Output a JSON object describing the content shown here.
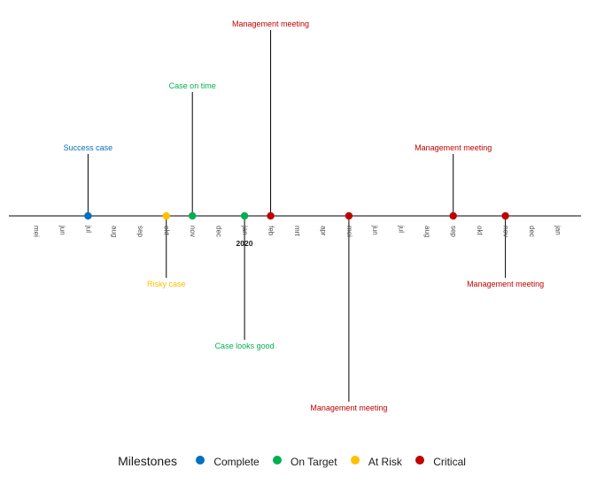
{
  "chart_data": {
    "type": "timeline",
    "year_label": "2020",
    "months": [
      "mei",
      "jun",
      "jul",
      "aug",
      "sep",
      "okt",
      "nov",
      "dec",
      "jan",
      "feb",
      "mrt",
      "apr",
      "mei",
      "jun",
      "jul",
      "aug",
      "sep",
      "okt",
      "nov",
      "dec",
      "jan"
    ],
    "status_colors": {
      "Complete": "#0070C0",
      "On Target": "#00B050",
      "At Risk": "#FFC000",
      "Critical": "#C00000"
    },
    "milestones": [
      {
        "month_index": 2.0,
        "label": "Success case",
        "status": "Complete",
        "height": 1.0
      },
      {
        "month_index": 5.0,
        "label": "Risky case",
        "status": "At Risk",
        "height": -1.0
      },
      {
        "month_index": 6.0,
        "label": "Case on time",
        "status": "On Target",
        "height": 2.0
      },
      {
        "month_index": 8.0,
        "label": "Case looks good",
        "status": "On Target",
        "height": -2.0
      },
      {
        "month_index": 9.0,
        "label": "Management meeting",
        "status": "Critical",
        "height": 3.0
      },
      {
        "month_index": 12.0,
        "label": "Management meeting",
        "status": "Critical",
        "height": -3.0
      },
      {
        "month_index": 16.0,
        "label": "Management meeting",
        "status": "Critical",
        "height": 1.0
      },
      {
        "month_index": 18.0,
        "label": "Management meeting",
        "status": "Critical",
        "height": -1.0
      }
    ],
    "legend": {
      "title": "Milestones",
      "items": [
        "Complete",
        "On Target",
        "At Risk",
        "Critical"
      ]
    },
    "grid": false
  }
}
